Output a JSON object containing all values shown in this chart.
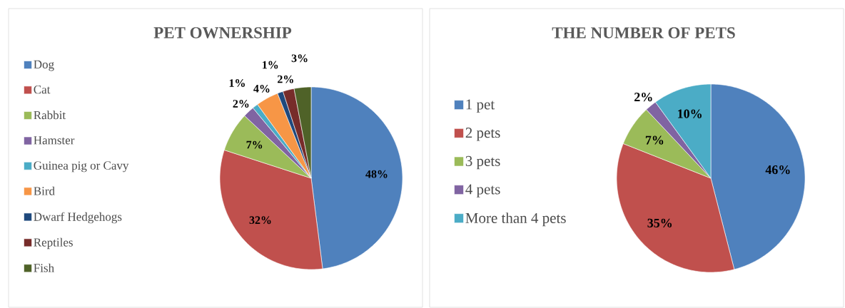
{
  "chart_data": [
    {
      "type": "pie",
      "title": "PET OWNERSHIP",
      "categories": [
        "Dog",
        "Cat",
        "Rabbit",
        "Hamster",
        "Guinea pig or Cavy",
        "Bird",
        "Dwarf Hedgehogs",
        "Reptiles",
        "Fish"
      ],
      "values": [
        48,
        32,
        7,
        2,
        1,
        4,
        1,
        2,
        3
      ],
      "value_labels": [
        "48%",
        "32%",
        "7%",
        "2%",
        "1%",
        "4%",
        "1%",
        "2%",
        "3%"
      ],
      "colors": [
        "#4f81bd",
        "#c0504d",
        "#9bbb59",
        "#8064a2",
        "#4bacc6",
        "#f79646",
        "#1f497d",
        "#772c2a",
        "#4f6228"
      ],
      "legend": "left"
    },
    {
      "type": "pie",
      "title": "THE NUMBER OF PETS",
      "categories": [
        "1 pet",
        "2 pets",
        "3 pets",
        "4 pets",
        "More than 4 pets"
      ],
      "values": [
        46,
        35,
        7,
        2,
        10
      ],
      "value_labels": [
        "46%",
        "35%",
        "7%",
        "2%",
        "10%"
      ],
      "colors": [
        "#4f81bd",
        "#c0504d",
        "#9bbb59",
        "#8064a2",
        "#4bacc6"
      ],
      "legend": "left"
    }
  ]
}
